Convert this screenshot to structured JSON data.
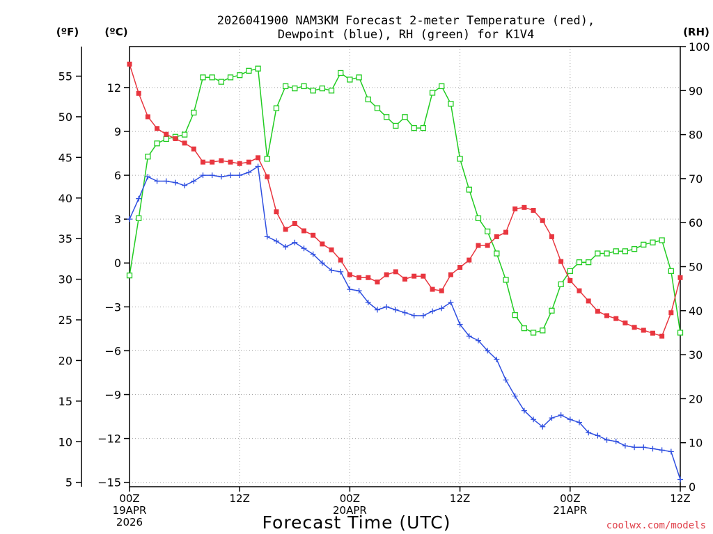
{
  "chart_data": {
    "type": "line",
    "title_line1": "2026041900 NAM3KM Forecast 2-meter Temperature (red),",
    "title_line2": "Dewpoint (blue), RH (green) for K1V4",
    "left_axis_f_label": "(ºF)",
    "left_axis_c_label": "(ºC)",
    "right_axis_label": "(RH)",
    "xlabel": "Forecast Time (UTC)",
    "credit": "coolwx.com/models",
    "x_range_hours": [
      0,
      60
    ],
    "c_range": [
      -15.3,
      14.8
    ],
    "rh_range": [
      0,
      100
    ],
    "f_ticks": [
      "55",
      "50",
      "45",
      "40",
      "35",
      "30",
      "25",
      "20",
      "15",
      "10",
      "5"
    ],
    "f_tick_values": [
      55,
      50,
      45,
      40,
      35,
      30,
      25,
      20,
      15,
      10,
      5
    ],
    "c_ticks": [
      "12",
      "9",
      "6",
      "3",
      "0",
      "−3",
      "−6",
      "−9",
      "−12",
      "−15"
    ],
    "c_tick_values": [
      12,
      9,
      6,
      3,
      0,
      -3,
      -6,
      -9,
      -12,
      -15
    ],
    "rh_ticks": [
      "100",
      "90",
      "80",
      "70",
      "60",
      "50",
      "40",
      "30",
      "20",
      "10",
      "0"
    ],
    "rh_tick_values": [
      100,
      90,
      80,
      70,
      60,
      50,
      40,
      30,
      20,
      10,
      0
    ],
    "x_ticks": [
      {
        "hour": 0,
        "label": "00Z",
        "date": "19APR",
        "year": "2026"
      },
      {
        "hour": 12,
        "label": "12Z",
        "date": "",
        "year": ""
      },
      {
        "hour": 24,
        "label": "00Z",
        "date": "20APR",
        "year": ""
      },
      {
        "hour": 36,
        "label": "12Z",
        "date": "",
        "year": ""
      },
      {
        "hour": 48,
        "label": "00Z",
        "date": "21APR",
        "year": ""
      },
      {
        "hour": 60,
        "label": "12Z",
        "date": "",
        "year": ""
      }
    ],
    "series": [
      {
        "name": "2-meter Temperature",
        "units": "C",
        "color": "#e8363f",
        "marker": "filled-square",
        "hours": [
          0,
          1,
          2,
          3,
          4,
          5,
          6,
          7,
          8,
          9,
          10,
          11,
          12,
          13,
          14,
          15,
          16,
          17,
          18,
          19,
          20,
          21,
          22,
          23,
          24,
          25,
          26,
          27,
          28,
          29,
          30,
          31,
          32,
          33,
          34,
          35,
          36,
          37,
          38,
          39,
          40,
          41,
          42,
          43,
          44,
          45,
          46,
          47,
          48,
          49,
          50,
          51,
          52,
          53,
          54,
          55,
          56,
          57,
          58,
          59,
          60
        ],
        "values": [
          13.6,
          11.6,
          10.0,
          9.2,
          8.8,
          8.5,
          8.2,
          7.8,
          6.9,
          6.9,
          7.0,
          6.9,
          6.8,
          6.9,
          7.2,
          5.9,
          3.5,
          2.3,
          2.7,
          2.2,
          1.9,
          1.3,
          0.9,
          0.2,
          -0.8,
          -1.0,
          -1.0,
          -1.3,
          -0.8,
          -0.6,
          -1.1,
          -0.9,
          -0.9,
          -1.8,
          -1.9,
          -0.8,
          -0.3,
          0.2,
          1.2,
          1.2,
          1.8,
          2.1,
          3.7,
          3.8,
          3.6,
          2.9,
          1.8,
          0.1,
          -1.2,
          -1.9,
          -2.6,
          -3.3,
          -3.6,
          -3.8,
          -4.1,
          -4.4,
          -4.6,
          -4.8,
          -5.0,
          -3.4,
          -1.0
        ]
      },
      {
        "name": "Dewpoint",
        "units": "C",
        "color": "#2f4fe0",
        "marker": "plus",
        "hours": [
          0,
          1,
          2,
          3,
          4,
          5,
          6,
          7,
          8,
          9,
          10,
          11,
          12,
          13,
          14,
          15,
          16,
          17,
          18,
          19,
          20,
          21,
          22,
          23,
          24,
          25,
          26,
          27,
          28,
          29,
          30,
          31,
          32,
          33,
          34,
          35,
          36,
          37,
          38,
          39,
          40,
          41,
          42,
          43,
          44,
          45,
          46,
          47,
          48,
          49,
          50,
          51,
          52,
          53,
          54,
          55,
          56,
          57,
          58,
          59,
          60
        ],
        "values": [
          3.0,
          4.4,
          5.9,
          5.6,
          5.6,
          5.5,
          5.3,
          5.6,
          6.0,
          6.0,
          5.9,
          6.0,
          6.0,
          6.2,
          6.6,
          1.8,
          1.5,
          1.1,
          1.4,
          1.0,
          0.6,
          0.0,
          -0.5,
          -0.6,
          -1.8,
          -1.9,
          -2.7,
          -3.2,
          -3.0,
          -3.2,
          -3.4,
          -3.6,
          -3.6,
          -3.3,
          -3.1,
          -2.7,
          -4.2,
          -5.0,
          -5.3,
          -6.0,
          -6.6,
          -8.0,
          -9.1,
          -10.1,
          -10.7,
          -11.2,
          -10.6,
          -10.4,
          -10.7,
          -10.9,
          -11.6,
          -11.8,
          -12.1,
          -12.2,
          -12.5,
          -12.6,
          -12.6,
          -12.7,
          -12.8,
          -12.9,
          -14.8
        ]
      },
      {
        "name": "RH",
        "units": "%",
        "color": "#22cc22",
        "marker": "open-square",
        "hours": [
          0,
          1,
          2,
          3,
          4,
          5,
          6,
          7,
          8,
          9,
          10,
          11,
          12,
          13,
          14,
          15,
          16,
          17,
          18,
          19,
          20,
          21,
          22,
          23,
          24,
          25,
          26,
          27,
          28,
          29,
          30,
          31,
          32,
          33,
          34,
          35,
          36,
          37,
          38,
          39,
          40,
          41,
          42,
          43,
          44,
          45,
          46,
          47,
          48,
          49,
          50,
          51,
          52,
          53,
          54,
          55,
          56,
          57,
          58,
          59,
          60
        ],
        "values": [
          48,
          61,
          75,
          78,
          79,
          79.5,
          80,
          85,
          93,
          93,
          92,
          93,
          93.5,
          94.5,
          95,
          74.5,
          86,
          91,
          90.5,
          91,
          90,
          90.5,
          90,
          94,
          92.5,
          93,
          88,
          86,
          84,
          82,
          84,
          81.5,
          81.5,
          89.5,
          91,
          87,
          74.5,
          67.5,
          61,
          58,
          53,
          47,
          39,
          36,
          35,
          35.5,
          40,
          46,
          49,
          51,
          51,
          53,
          53,
          53.5,
          53.5,
          54,
          55,
          55.5,
          56,
          49,
          35
        ]
      }
    ]
  }
}
